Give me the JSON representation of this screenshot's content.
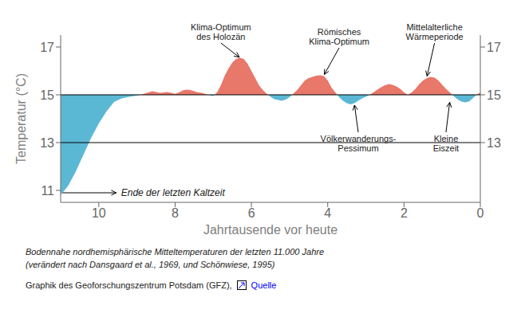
{
  "chart_data": {
    "type": "area",
    "xlabel": "Jahrtausende vor heute",
    "ylabel": "Temperatur (°C)",
    "x": [
      11.0,
      10.8,
      10.6,
      10.4,
      10.2,
      10.0,
      9.8,
      9.6,
      9.4,
      9.2,
      9.0,
      8.9,
      8.8,
      8.7,
      8.6,
      8.5,
      8.4,
      8.3,
      8.2,
      8.1,
      8.0,
      7.9,
      7.8,
      7.7,
      7.6,
      7.5,
      7.4,
      7.3,
      7.2,
      7.1,
      7.0,
      6.9,
      6.8,
      6.7,
      6.6,
      6.5,
      6.4,
      6.3,
      6.2,
      6.1,
      6.0,
      5.9,
      5.8,
      5.7,
      5.6,
      5.5,
      5.4,
      5.3,
      5.2,
      5.1,
      5.0,
      4.9,
      4.8,
      4.7,
      4.6,
      4.5,
      4.4,
      4.3,
      4.2,
      4.1,
      4.0,
      3.9,
      3.8,
      3.7,
      3.6,
      3.5,
      3.4,
      3.3,
      3.2,
      3.1,
      3.0,
      2.9,
      2.8,
      2.7,
      2.6,
      2.5,
      2.4,
      2.3,
      2.2,
      2.1,
      2.0,
      1.9,
      1.8,
      1.7,
      1.6,
      1.5,
      1.4,
      1.3,
      1.2,
      1.1,
      1.0,
      0.9,
      0.8,
      0.7,
      0.6,
      0.5,
      0.4,
      0.3,
      0.2,
      0.1,
      0.0
    ],
    "values": [
      10.8,
      11.2,
      11.8,
      12.5,
      13.2,
      13.8,
      14.3,
      14.7,
      14.85,
      14.92,
      14.97,
      15.0,
      15.05,
      15.1,
      15.15,
      15.12,
      15.08,
      15.1,
      15.12,
      15.08,
      15.04,
      15.1,
      15.18,
      15.22,
      15.2,
      15.15,
      15.1,
      15.08,
      15.03,
      14.98,
      14.95,
      15.1,
      15.4,
      15.8,
      16.1,
      16.35,
      16.5,
      16.55,
      16.5,
      16.3,
      16.0,
      15.7,
      15.4,
      15.2,
      15.05,
      14.92,
      14.82,
      14.78,
      14.75,
      14.8,
      14.9,
      15.05,
      15.2,
      15.4,
      15.6,
      15.7,
      15.75,
      15.8,
      15.82,
      15.78,
      15.6,
      15.3,
      15.1,
      14.9,
      14.75,
      14.65,
      14.6,
      14.65,
      14.75,
      14.85,
      14.92,
      15.0,
      15.1,
      15.22,
      15.32,
      15.4,
      15.45,
      15.42,
      15.35,
      15.25,
      15.1,
      15.0,
      15.1,
      15.25,
      15.45,
      15.6,
      15.7,
      15.75,
      15.72,
      15.6,
      15.42,
      15.25,
      15.1,
      14.95,
      14.82,
      14.72,
      14.68,
      14.72,
      14.85,
      15.0,
      15.1
    ],
    "baseline": 15.0,
    "colors": [
      "#E8786A",
      "#5BB8D4"
    ],
    "hlines": [
      15.0,
      13
    ],
    "xlim": [
      11,
      0
    ],
    "ylim": [
      10.5,
      17.5
    ],
    "xticks": [
      10,
      8,
      6,
      4,
      2,
      0
    ],
    "yticks": [
      11,
      13,
      15,
      17
    ],
    "y2lim": [
      10.5,
      17.5
    ],
    "y2ticks": [
      13,
      15,
      17
    ],
    "annotations": [
      {
        "text": "Klima-Optimum\ndes Holozän",
        "x": 6.3,
        "y": 16.55,
        "text_x": 6.8,
        "text_y": 17.2
      },
      {
        "text": "Römisches\nKlima-Optimum",
        "x": 4.1,
        "y": 15.82,
        "text_x": 3.7,
        "text_y": 17.0
      },
      {
        "text": "Mittelalterliche\nWärmeperiode",
        "x": 1.4,
        "y": 15.75,
        "text_x": 1.2,
        "text_y": 17.2
      },
      {
        "text": "Völkerwanderungs-\nPessimum",
        "x": 3.3,
        "y": 14.6,
        "text_x": 3.2,
        "text_y": 13.4
      },
      {
        "text": "Kleine\nEiszeit",
        "x": 0.8,
        "y": 14.72,
        "text_x": 0.9,
        "text_y": 13.4
      }
    ],
    "side_annotation": {
      "text": "Ende der letzten Kaltzeit",
      "x": 10.95,
      "y": 10.9,
      "text_x": 9.5,
      "text_y": 10.9
    },
    "caption": [
      "Bodennahe nordhemisphärische Mitteltemperaturen der letzten 11.000 Jahre",
      "(verändert nach Dansgaard et al., 1969, und Schönwiese, 1995)"
    ],
    "credit": "Graphik des Geoforschungszentrum Potsdam (GFZ),",
    "source_link": "Quelle"
  }
}
